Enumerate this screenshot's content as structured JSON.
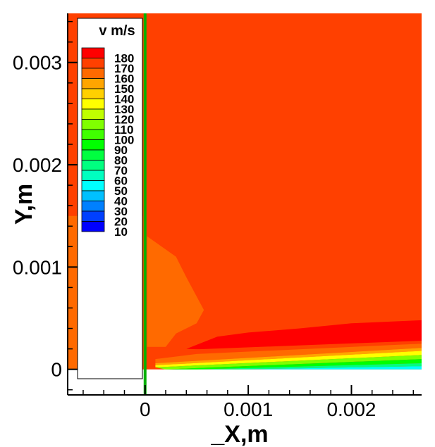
{
  "chart_data": {
    "type": "heatmap",
    "title": "",
    "xlabel": "_X,m",
    "ylabel": "Y,m",
    "xlim": [
      -0.00075,
      0.00268
    ],
    "ylim": [
      -0.00025,
      0.00348
    ],
    "x_ticks": [
      {
        "value": 0,
        "label": "0"
      },
      {
        "value": 0.001,
        "label": "0.001"
      },
      {
        "value": 0.002,
        "label": "0.002"
      }
    ],
    "y_ticks": [
      {
        "value": 0,
        "label": "0"
      },
      {
        "value": 0.001,
        "label": "0.001"
      },
      {
        "value": 0.002,
        "label": "0.002"
      },
      {
        "value": 0.003,
        "label": "0.003"
      }
    ],
    "colorbar": {
      "title": "v m/s",
      "levels": [
        180,
        170,
        160,
        150,
        140,
        130,
        120,
        110,
        100,
        90,
        80,
        70,
        60,
        50,
        40,
        30,
        20,
        10
      ],
      "colors": [
        "#ff0000",
        "#ff4000",
        "#ff6a00",
        "#ffa500",
        "#ffd000",
        "#ffff00",
        "#c0ff00",
        "#80ff00",
        "#40ff00",
        "#00ff00",
        "#00ff40",
        "#00ff80",
        "#00ffc0",
        "#00ffff",
        "#00c0ff",
        "#0080ff",
        "#0040ff",
        "#0000ff"
      ]
    },
    "wall_x": 0,
    "wall_color": "#00b000",
    "regions": [
      {
        "value": 170,
        "points": [
          [
            -0.00075,
            0
          ],
          [
            -0.00075,
            0.00348
          ],
          [
            0.00268,
            0.00348
          ],
          [
            0.00268,
            0
          ]
        ]
      },
      {
        "value": 160,
        "points": [
          [
            -0.00075,
            0
          ],
          [
            -0.00075,
            0.0015
          ],
          [
            -2e-05,
            0.0015
          ],
          [
            -2e-05,
            0
          ]
        ]
      },
      {
        "value": 160,
        "points": [
          [
            2e-05,
            0.0013
          ],
          [
            0.0003,
            0.0011
          ],
          [
            0.0004,
            0.0009
          ],
          [
            0.00057,
            0.00058
          ],
          [
            0.0005,
            0.00045
          ],
          [
            0.0003,
            0.00035
          ],
          [
            0.0002,
            0.00022
          ],
          [
            2e-05,
            0.00022
          ]
        ]
      },
      {
        "value": 180,
        "points": [
          [
            0.0004,
            0.0002
          ],
          [
            0.0007,
            0.00032
          ],
          [
            0.001,
            0.00036
          ],
          [
            0.0015,
            0.0004
          ],
          [
            0.002,
            0.00045
          ],
          [
            0.00268,
            0.00048
          ],
          [
            0.00268,
            0.00022
          ],
          [
            0.0007,
            0.00019
          ]
        ]
      },
      {
        "value": 170,
        "points": [
          [
            0.0001,
            0.00018
          ],
          [
            0.00268,
            0.00028
          ],
          [
            0.00268,
            0.00025
          ],
          [
            0.0001,
            0.0001
          ]
        ]
      },
      {
        "value": 160,
        "points": [
          [
            0.0001,
            0.0001
          ],
          [
            0.0005,
            0.00015
          ],
          [
            0.00268,
            0.00025
          ],
          [
            0.00268,
            0.00021
          ],
          [
            0.0001,
            6e-05
          ]
        ]
      },
      {
        "value": 150,
        "points": [
          [
            0.0001,
            6e-05
          ],
          [
            0.00268,
            0.00021
          ],
          [
            0.00268,
            0.00018
          ],
          [
            0.0001,
            4e-05
          ]
        ]
      },
      {
        "value": 130,
        "points": [
          [
            0.0001,
            4e-05
          ],
          [
            0.00268,
            0.00018
          ],
          [
            0.00268,
            0.00014
          ],
          [
            0.0001,
            2e-05
          ]
        ]
      },
      {
        "value": 110,
        "points": [
          [
            0.0001,
            2e-05
          ],
          [
            0.00268,
            0.00014
          ],
          [
            0.00268,
            0.0001
          ],
          [
            0.0002,
            0
          ]
        ]
      },
      {
        "value": 90,
        "points": [
          [
            0.0002,
            0
          ],
          [
            0.00268,
            0.0001
          ],
          [
            0.00268,
            6e-05
          ],
          [
            0.0005,
            0
          ]
        ]
      },
      {
        "value": 70,
        "points": [
          [
            0.0005,
            0
          ],
          [
            0.00268,
            6e-05
          ],
          [
            0.00268,
            3e-05
          ],
          [
            0.0009,
            0
          ]
        ]
      },
      {
        "value": 50,
        "points": [
          [
            0.0009,
            0
          ],
          [
            0.00268,
            3e-05
          ],
          [
            0.00268,
            0
          ]
        ]
      }
    ]
  }
}
